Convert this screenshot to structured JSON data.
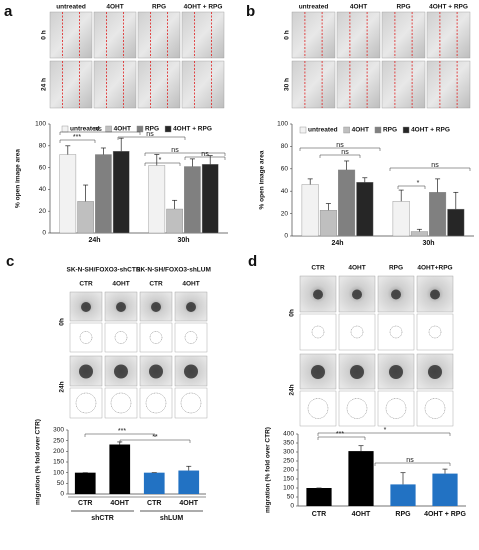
{
  "chart_data": [
    {
      "type": "bar",
      "panel": "a",
      "image_columns": [
        "untreated",
        "4OHT",
        "RPG",
        "4OHT + RPG"
      ],
      "image_rows": [
        "0 h",
        "24 h"
      ],
      "y_label": "% open image area",
      "categories": [
        "24h",
        "30h"
      ],
      "series": [
        {
          "name": "untreated",
          "color": "#f2f2f2",
          "values": [
            72,
            62
          ],
          "errors": [
            8,
            10
          ]
        },
        {
          "name": "4OHT",
          "color": "#bfbfbf",
          "values": [
            29,
            22
          ],
          "errors": [
            15,
            8
          ]
        },
        {
          "name": "RPG",
          "color": "#808080",
          "values": [
            72,
            61
          ],
          "errors": [
            6,
            7
          ]
        },
        {
          "name": "4OHT + RPG",
          "color": "#262626",
          "values": [
            75,
            63
          ],
          "errors": [
            12,
            8
          ]
        }
      ],
      "ylim": [
        0,
        100
      ],
      "yticks": [
        0,
        20,
        40,
        60,
        80,
        100
      ],
      "annotations": [
        "***",
        "ns",
        "ns",
        "*",
        "ns",
        "ns"
      ]
    },
    {
      "type": "bar",
      "panel": "b",
      "image_columns": [
        "untreated",
        "4OHT",
        "RPG",
        "4OHT + RPG"
      ],
      "image_rows": [
        "0 h",
        "30 h"
      ],
      "y_label": "% open image area",
      "categories": [
        "24h",
        "30h"
      ],
      "series": [
        {
          "name": "untreated",
          "color": "#f2f2f2",
          "values": [
            46,
            31
          ],
          "errors": [
            5,
            10
          ]
        },
        {
          "name": "4OHT",
          "color": "#bfbfbf",
          "values": [
            23,
            4
          ],
          "errors": [
            6,
            2
          ]
        },
        {
          "name": "RPG",
          "color": "#808080",
          "values": [
            59,
            39
          ],
          "errors": [
            8,
            12
          ]
        },
        {
          "name": "4OHT + RPG",
          "color": "#262626",
          "values": [
            48,
            24
          ],
          "errors": [
            4,
            15
          ]
        }
      ],
      "ylim": [
        0,
        100
      ],
      "yticks": [
        0,
        20,
        40,
        60,
        80,
        100
      ],
      "annotations": [
        "ns",
        "ns",
        "ns",
        "*"
      ]
    },
    {
      "type": "bar",
      "panel": "c",
      "image_groups": [
        "SK-N-SH/FOXO3-shCTR",
        "SK-N-SH/FOXO3-shLUM"
      ],
      "image_columns": [
        "CTR",
        "4OHT",
        "CTR",
        "4OHT"
      ],
      "image_rows": [
        "0h",
        "24h"
      ],
      "y_label": "migration (% fold over CTR)",
      "categories": [
        "CTR",
        "4OHT",
        "CTR",
        "4OHT"
      ],
      "groups": [
        "shCTR",
        "shLUM"
      ],
      "values": [
        100,
        232,
        100,
        110
      ],
      "errors": [
        0,
        12,
        0,
        20
      ],
      "colors": [
        "#000000",
        "#000000",
        "#2272c3",
        "#2272c3"
      ],
      "ylim": [
        0,
        300
      ],
      "yticks": [
        0,
        50,
        100,
        150,
        200,
        250,
        300
      ],
      "annotations": [
        "***",
        "**"
      ]
    },
    {
      "type": "bar",
      "panel": "d",
      "image_columns": [
        "CTR",
        "4OHT",
        "RPG",
        "4OHT+RPG"
      ],
      "image_rows": [
        "0h",
        "24h"
      ],
      "y_label": "migration (% fold over CTR)",
      "categories": [
        "CTR",
        "4OHT",
        "RPG",
        "4OHT + RPG"
      ],
      "values": [
        100,
        305,
        120,
        180
      ],
      "errors": [
        0,
        30,
        65,
        25
      ],
      "colors": [
        "#000000",
        "#000000",
        "#2272c3",
        "#2272c3"
      ],
      "ylim": [
        0,
        400
      ],
      "yticks": [
        0,
        50,
        100,
        150,
        200,
        250,
        300,
        350,
        400
      ],
      "annotations": [
        "***",
        "*",
        "ns"
      ]
    }
  ]
}
